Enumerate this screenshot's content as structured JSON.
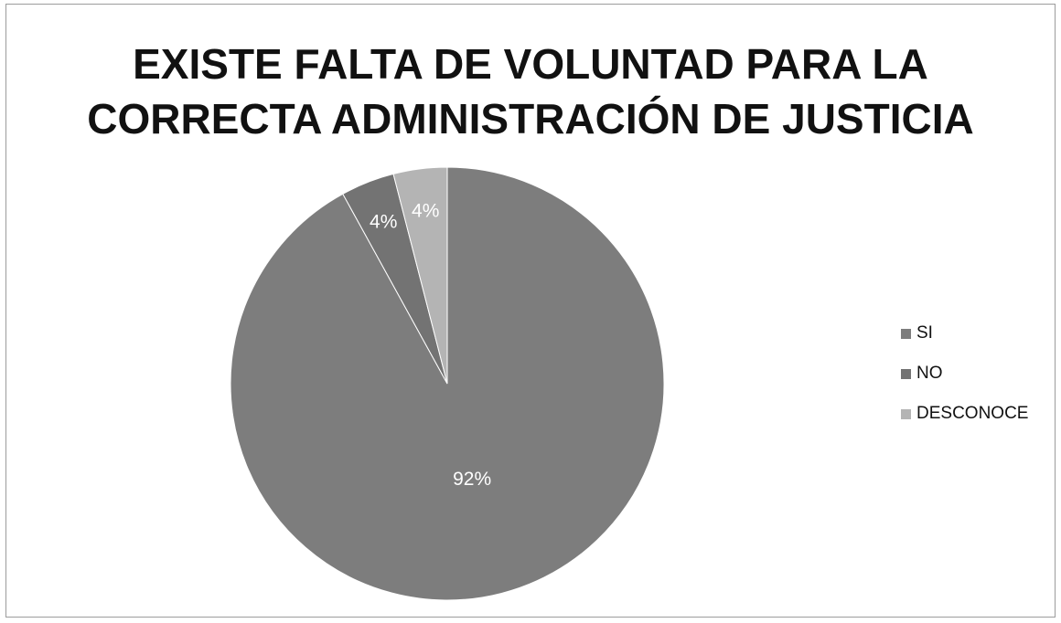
{
  "chart_data": {
    "type": "pie",
    "title_lines": [
      "EXISTE FALTA DE VOLUNTAD PARA LA",
      "CORRECTA ADMINISTRACIÓN DE JUSTICIA"
    ],
    "categories": [
      "SI",
      "NO",
      "DESCONOCE"
    ],
    "values": [
      92,
      4,
      4
    ],
    "data_labels": [
      "92%",
      "4%",
      "4%"
    ],
    "colors": [
      "#7d7d7d",
      "#737373",
      "#b4b4b4"
    ],
    "legend_position": "right",
    "start_angle": "top, clockwise"
  }
}
